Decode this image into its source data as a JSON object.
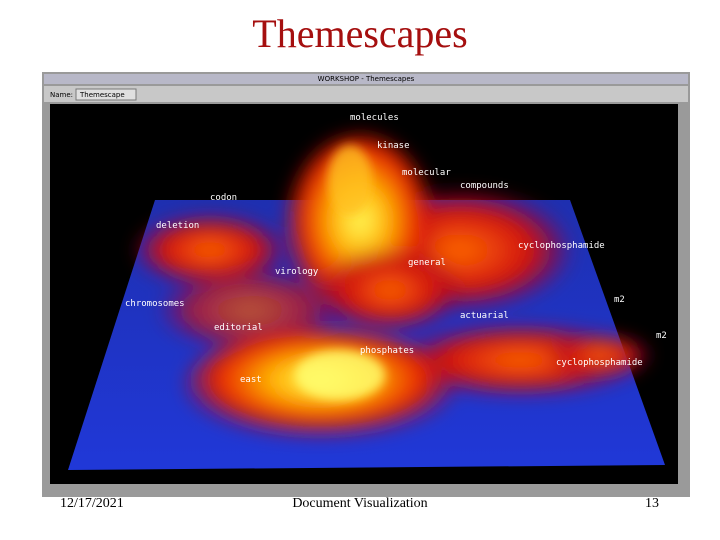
{
  "title": "Themescapes",
  "window": {
    "title": "WORKSHOP - Themescapes",
    "name_label": "Name:",
    "name_value": "Themescape"
  },
  "map": {
    "labels": [
      "molecules",
      "kinase",
      "molecular",
      "compounds",
      "codon",
      "deletion",
      "cyclophosphamide",
      "virology",
      "general",
      "chromosomes",
      "m2",
      "editorial",
      "actuarial",
      "m2",
      "phosphates",
      "cyclophosphamide",
      "east"
    ]
  },
  "footer": {
    "date": "12/17/2021",
    "center": "Document Visualization",
    "page": "13"
  }
}
